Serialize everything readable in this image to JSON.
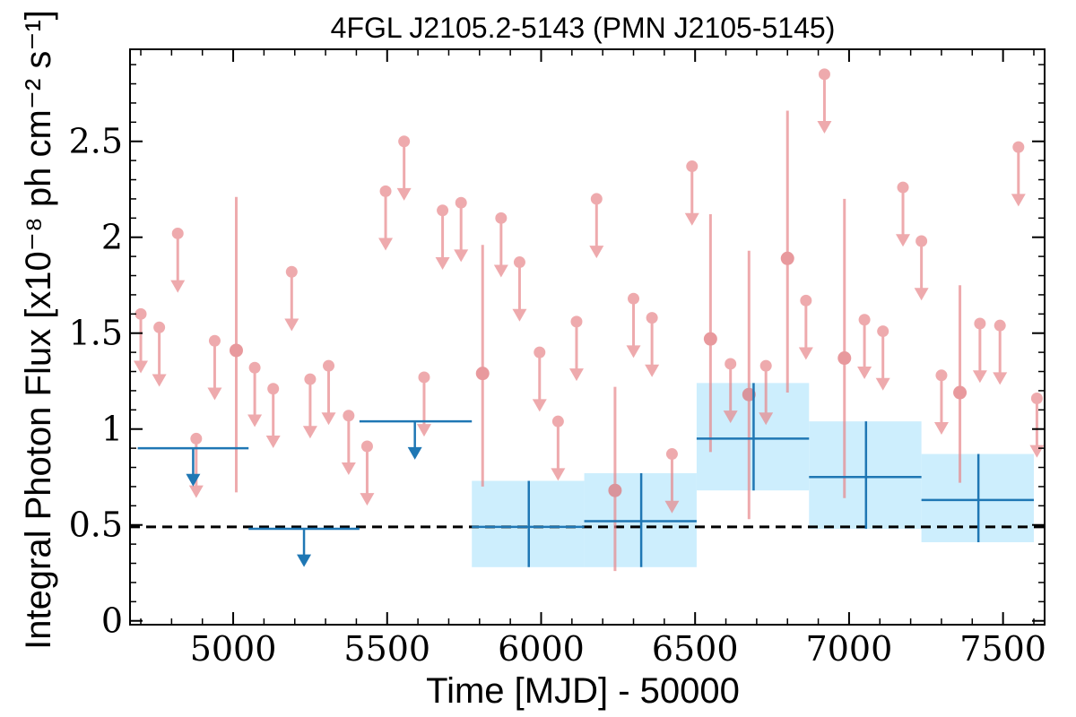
{
  "chart_data": {
    "type": "scatter",
    "title": "4FGL J2105.2-5143 (PMN J2105-5145)",
    "xlabel": "Time [MJD] - 50000",
    "ylabel": "Integral Photon Flux [x10⁻⁸ ph cm⁻² s⁻¹]",
    "xlim": [
      4665,
      7635
    ],
    "ylim": [
      -0.02,
      2.98
    ],
    "x_ticks": [
      5000,
      5500,
      6000,
      6500,
      7000,
      7500
    ],
    "x_tick_labels": [
      "5000",
      "5500",
      "6000",
      "6500",
      "7000",
      "7500"
    ],
    "y_ticks": [
      0,
      0.5,
      1,
      1.5,
      2,
      2.5
    ],
    "y_tick_labels": [
      "0",
      "0.5",
      "1",
      "1.5",
      "2",
      "2.5"
    ],
    "reference_line": {
      "y": 0.49,
      "style": "dashed"
    },
    "colors": {
      "monthly": "#e8878b",
      "yearly": "#1f77b4",
      "yearly_band": "#cdeefd"
    },
    "series": [
      {
        "kind": "monthly-upper-limits",
        "points": [
          [
            4700,
            1.6
          ],
          [
            4760,
            1.53
          ],
          [
            4820,
            2.02
          ],
          [
            4880,
            0.95
          ],
          [
            4940,
            1.46
          ],
          [
            5070,
            1.32
          ],
          [
            5130,
            1.21
          ],
          [
            5190,
            1.82
          ],
          [
            5250,
            1.26
          ],
          [
            5310,
            1.33
          ],
          [
            5375,
            1.07
          ],
          [
            5435,
            0.91
          ],
          [
            5495,
            2.24
          ],
          [
            5555,
            2.5
          ],
          [
            5620,
            1.27
          ],
          [
            5680,
            2.14
          ],
          [
            5740,
            2.18
          ],
          [
            5870,
            2.1
          ],
          [
            5930,
            1.87
          ],
          [
            5995,
            1.4
          ],
          [
            6055,
            1.04
          ],
          [
            6115,
            1.56
          ],
          [
            6180,
            2.2
          ],
          [
            6300,
            1.68
          ],
          [
            6360,
            1.58
          ],
          [
            6425,
            0.87
          ],
          [
            6490,
            2.37
          ],
          [
            6615,
            1.34
          ],
          [
            6730,
            1.33
          ],
          [
            6860,
            1.67
          ],
          [
            6920,
            2.85
          ],
          [
            7050,
            1.57
          ],
          [
            7110,
            1.51
          ],
          [
            7175,
            2.26
          ],
          [
            7235,
            1.98
          ],
          [
            7300,
            1.28
          ],
          [
            7425,
            1.55
          ],
          [
            7490,
            1.54
          ],
          [
            7550,
            2.47
          ],
          [
            7610,
            1.16
          ]
        ]
      },
      {
        "kind": "monthly-detections",
        "points": [
          {
            "x": 5010,
            "y": 1.41,
            "lo": 0.67,
            "hi": 2.21
          },
          {
            "x": 5810,
            "y": 1.29,
            "lo": 0.7,
            "hi": 1.96
          },
          {
            "x": 6240,
            "y": 0.68,
            "lo": 0.26,
            "hi": 1.22
          },
          {
            "x": 6550,
            "y": 1.47,
            "lo": 0.88,
            "hi": 2.12
          },
          {
            "x": 6675,
            "y": 1.18,
            "lo": 0.53,
            "hi": 1.93
          },
          {
            "x": 6800,
            "y": 1.89,
            "lo": 1.19,
            "hi": 2.66
          },
          {
            "x": 6985,
            "y": 1.37,
            "lo": 0.64,
            "hi": 2.2
          },
          {
            "x": 7360,
            "y": 1.19,
            "lo": 0.72,
            "hi": 1.75
          }
        ]
      },
      {
        "kind": "yearly-upper-limits",
        "points": [
          {
            "x": 4870,
            "x0": 4690,
            "x1": 5050,
            "y": 0.9
          },
          {
            "x": 5230,
            "x0": 5050,
            "x1": 5410,
            "y": 0.48
          },
          {
            "x": 5590,
            "x0": 5410,
            "x1": 5775,
            "y": 1.04
          }
        ]
      },
      {
        "kind": "yearly-detections",
        "points": [
          {
            "x": 5960,
            "x0": 5775,
            "x1": 6140,
            "y": 0.49,
            "lo": 0.28,
            "hi": 0.73
          },
          {
            "x": 6325,
            "x0": 6140,
            "x1": 6505,
            "y": 0.52,
            "lo": 0.28,
            "hi": 0.77
          },
          {
            "x": 6690,
            "x0": 6505,
            "x1": 6870,
            "y": 0.95,
            "lo": 0.68,
            "hi": 1.24
          },
          {
            "x": 7055,
            "x0": 6870,
            "x1": 7235,
            "y": 0.75,
            "lo": 0.48,
            "hi": 1.04
          },
          {
            "x": 7420,
            "x0": 7235,
            "x1": 7600,
            "y": 0.63,
            "lo": 0.41,
            "hi": 0.87
          }
        ]
      }
    ]
  }
}
